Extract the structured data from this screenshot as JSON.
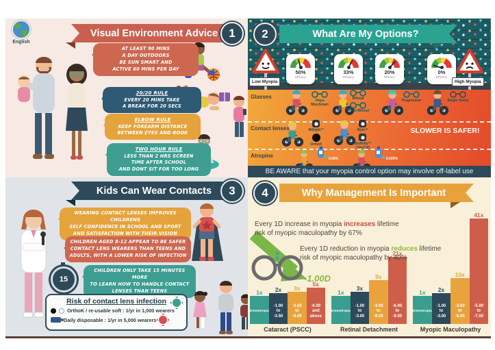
{
  "meta": {
    "language_badge": "English"
  },
  "q1": {
    "number": "1",
    "title": "Visual Environment Advice",
    "bubbles": [
      {
        "title": "",
        "text": "AT LEAST 90 MINS\nA DAY OUTDOORS\nBE SUN SMART AND\nACTIVE 60 MINS PER DAY"
      },
      {
        "title": "20/20 RULE",
        "text": "EVERY 20 MINS TAKE\nA BREAK FOR 20 SECS"
      },
      {
        "title": "ELBOW RULE",
        "text": "KEEP FOREARM DISTANCE\nBETWEEN EYES AND BOOK"
      },
      {
        "title": "TWO HOUR RULE",
        "text": "LESS THAN 2 HRS SCREEN\nTIME AFTER SCHOOL\nAND DONT SIT FOR TOO LONG"
      }
    ]
  },
  "q2": {
    "number": "2",
    "title": "What Are My Options?",
    "left_sign": "Low Myopia",
    "right_sign": "High Myopia",
    "gauges": [
      {
        "value": "50%",
        "label": "Efficacy"
      },
      {
        "value": "33%",
        "label": "Efficacy"
      },
      {
        "value": "20%",
        "label": "Efficacy"
      },
      {
        "value": "0%",
        "label": "Efficacy"
      }
    ],
    "rows": [
      "Glasses",
      "Contact lenses",
      "Atropine"
    ],
    "glasses_labels": [
      "Hoya\nMiyoSmart",
      "Bifocal",
      "Prism Bifocal",
      "Progressive",
      "Single Vision"
    ],
    "contact_labels": [
      "MiSight™",
      "OrthoK",
      "Mylo™",
      "Biofinity™\nCD+2.50"
    ],
    "atropine_labels": [
      "0.05%",
      "0.025%"
    ],
    "slogan": "SLOWER IS SAFER!",
    "banner": "BE AWARE that your myopia control option may involve off-label use"
  },
  "q3": {
    "number": "3",
    "title": "Kids Can Wear Contacts",
    "bubbles": [
      {
        "text": "WEARING CONTACT LENSES IMPROVES CHILDRENS\nSELF CONFIDENCE IN SCHOOL AND SPORT\nAND SATISFACTION WITH THEIR VISION"
      },
      {
        "text": "CHILDREN AGED 8-12 APPEAR TO BE SAFER\nCONTACT LENS WEARERS THAN TEENS AND\nADULTS, WITH A LOWER RISK OF INFECTION"
      },
      {
        "text": "CHILDREN ONLY TAKE 15 MINUTES MORE\nTO LEARN HOW TO HANDLE CONTACT\nLENSES THAN TEENS"
      }
    ],
    "stopwatch": "15",
    "risk_box": {
      "title": "Risk of contact lens infection",
      "lines": [
        "OrthoK / re-usable soft : 1/yr in 1,000 wearers",
        "Daily disposable : 1/yr in 5,000 wearers"
      ]
    }
  },
  "q4": {
    "number": "4",
    "title": "Why Management Is Important",
    "fact1": {
      "pre": "Every 1D increase in myopia ",
      "em": "increases",
      "post": " lifetime\nrisk of myopic maculopathy by 67%"
    },
    "fact2": {
      "pre": "Every 1D reduction in myopia ",
      "em": "reduces",
      "post": " lifetime\nrisk of myopic maculopathy by 40%"
    },
    "diopter_label": "-1.00D"
  },
  "chart_data": {
    "type": "bar",
    "unit": "relative lifetime risk (x)",
    "groups": [
      {
        "name": "Cataract (PSCC)",
        "bars": [
          {
            "range": "Emmetropia",
            "multiplier": 1,
            "label": "1x",
            "color": "#3a9e8f"
          },
          {
            "range": "-1.00\nto\n-3.50",
            "multiplier": 2,
            "label": "2x",
            "color": "#2e4a5a"
          },
          {
            "range": "-3.50\nto\n-6.00",
            "multiplier": 3,
            "label": "3x",
            "color": "#e9a33d"
          },
          {
            "range": "-6.00\nand\nabove",
            "multiplier": 5,
            "label": "5x",
            "color": "#cd5f4a"
          }
        ]
      },
      {
        "name": "Retinal Detachment",
        "bars": [
          {
            "range": "Emmetropia",
            "multiplier": 1,
            "label": "1x",
            "color": "#3a9e8f"
          },
          {
            "range": "-1.00\nto\n-3.00",
            "multiplier": 3,
            "label": "3x",
            "color": "#2e4a5a"
          },
          {
            "range": "-3.00\nto\n-6.00",
            "multiplier": 9,
            "label": "9x",
            "color": "#e9a33d"
          },
          {
            "range": "-6.00\nto\n-9.00",
            "multiplier": 21,
            "label": "21x",
            "color": "#cd5f4a"
          }
        ]
      },
      {
        "name": "Myopic Maculopathy",
        "bars": [
          {
            "range": "Emmetropia",
            "multiplier": 1,
            "label": "1x",
            "color": "#3a9e8f"
          },
          {
            "range": "-1.00\nto\n-3.00",
            "multiplier": 2,
            "label": "2x",
            "color": "#2e4a5a"
          },
          {
            "range": "-3.00\nto\n-5.00",
            "multiplier": 10,
            "label": "10x",
            "color": "#e9a33d"
          },
          {
            "range": "-5.00\nto\n-7.00",
            "multiplier": 41,
            "label": "41x",
            "color": "#cd5f4a"
          }
        ]
      }
    ]
  }
}
